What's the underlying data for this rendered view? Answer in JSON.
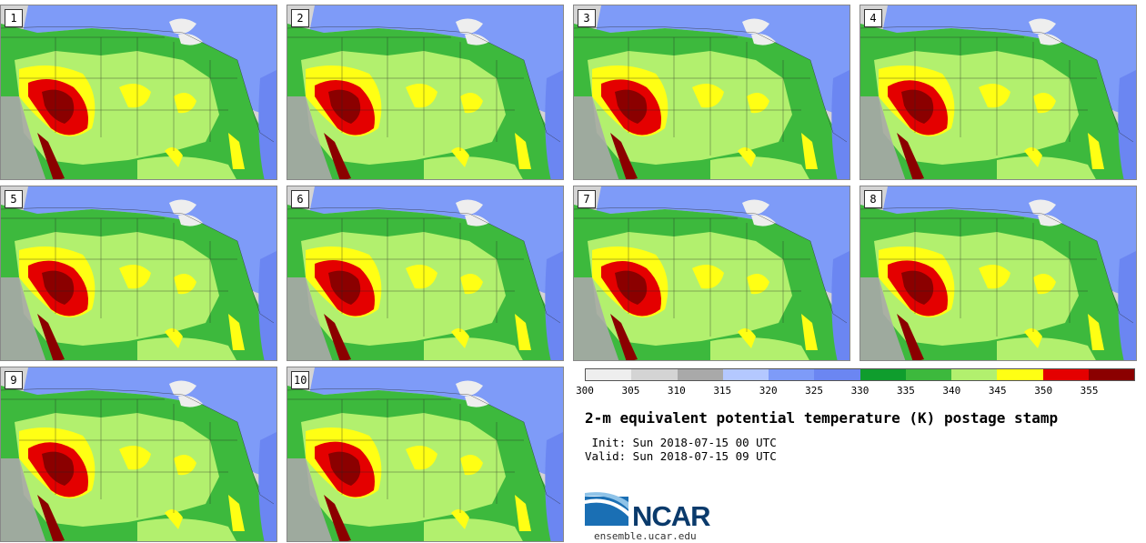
{
  "panels": [
    {
      "label": "1"
    },
    {
      "label": "2"
    },
    {
      "label": "3"
    },
    {
      "label": "4"
    },
    {
      "label": "5"
    },
    {
      "label": "6"
    },
    {
      "label": "7"
    },
    {
      "label": "8"
    },
    {
      "label": "9"
    },
    {
      "label": "10"
    }
  ],
  "colorbar": {
    "colors": [
      "#eeeeee",
      "#d4d4d4",
      "#a9a9a9",
      "#b4c8ff",
      "#7e9bf8",
      "#6b86f2",
      "#0f9d2d",
      "#3db93d",
      "#b2f06e",
      "#ffff14",
      "#e40000",
      "#8b0000"
    ],
    "ticks": [
      "300",
      "305",
      "310",
      "315",
      "320",
      "325",
      "330",
      "335",
      "340",
      "345",
      "350",
      "355"
    ]
  },
  "title": "2-m equivalent potential temperature (K) postage stamp",
  "init": " Init: Sun 2018-07-15 00 UTC",
  "valid": "Valid: Sun 2018-07-15 09 UTC",
  "logo": {
    "text": "NCAR",
    "site": "ensemble.ucar.edu"
  }
}
